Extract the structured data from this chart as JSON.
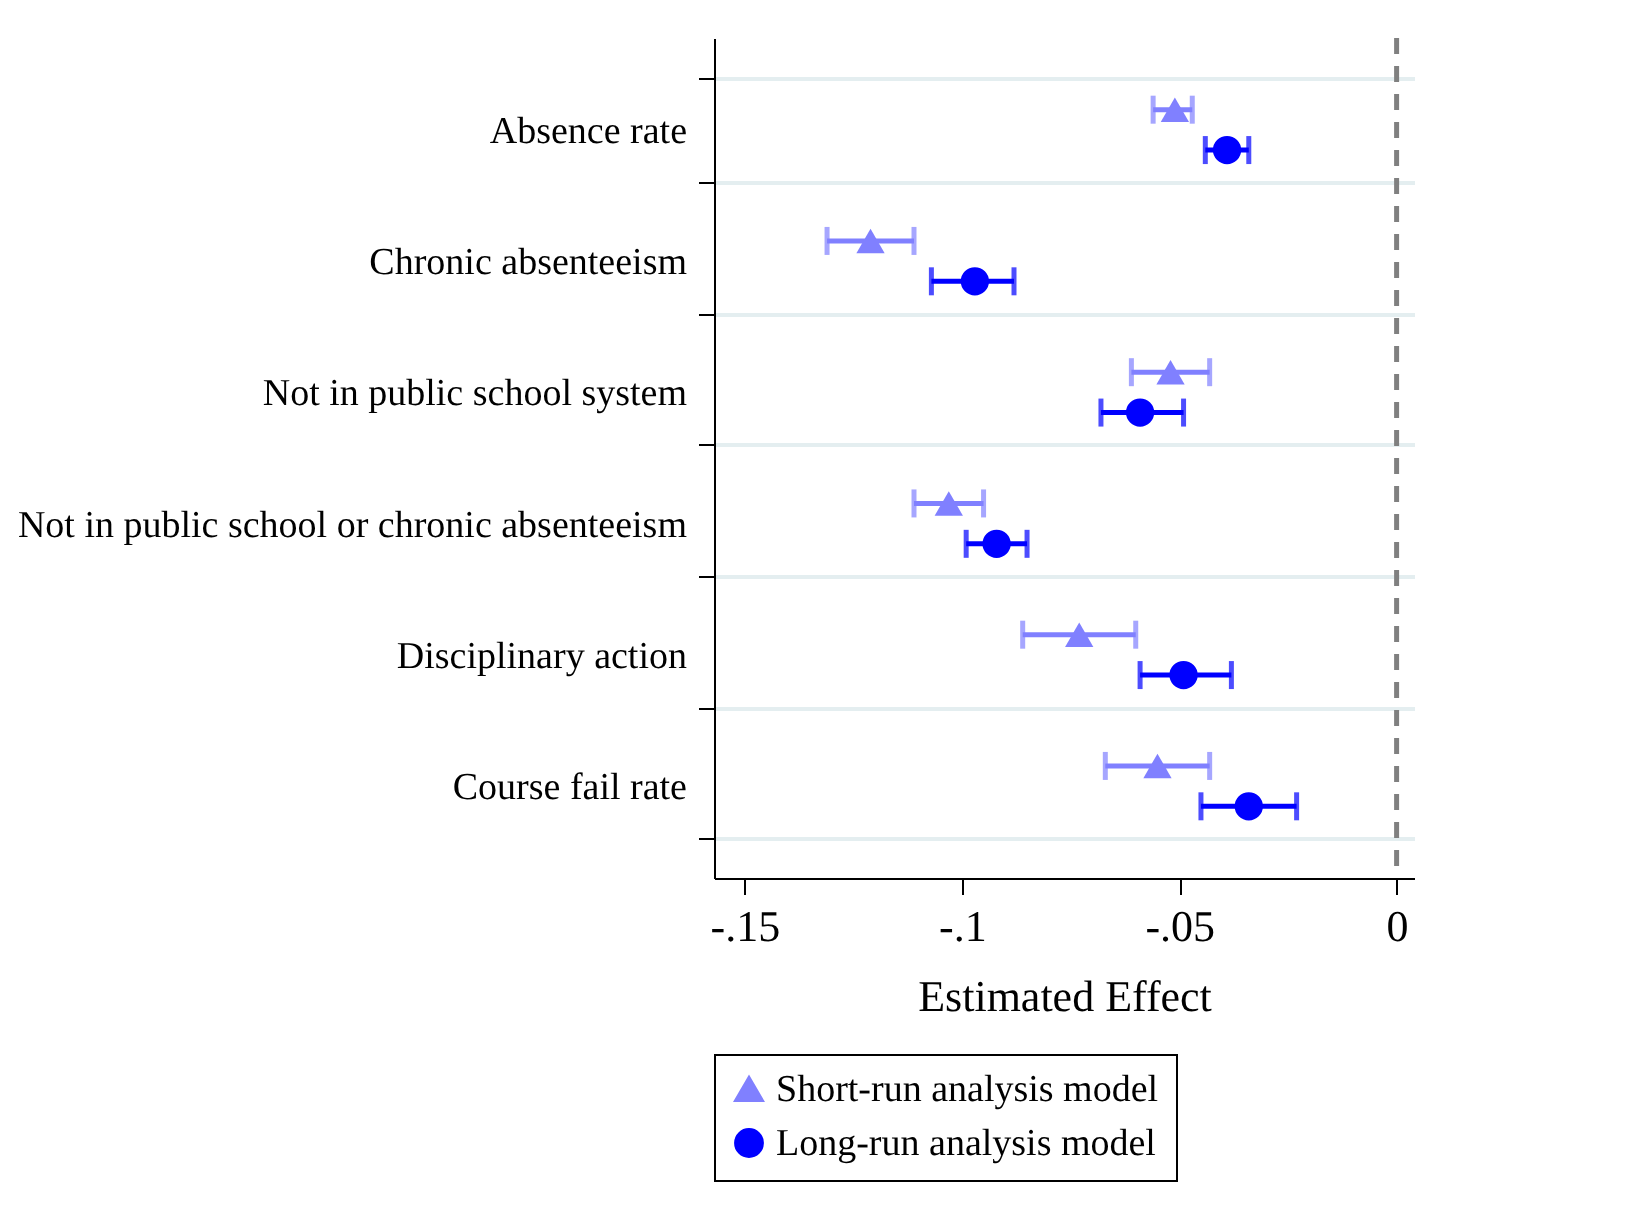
{
  "chart_data": {
    "type": "scatter",
    "xlabel": "Estimated Effect",
    "categories": [
      "Absence rate",
      "Chronic absenteeism",
      "Not in public school system",
      "Not in public school or chronic absenteeism",
      "Disciplinary action",
      "Course fail rate"
    ],
    "series": [
      {
        "name": "Short-run analysis model",
        "color": "#8080ff",
        "marker": "triangle",
        "values": [
          -0.051,
          -0.121,
          -0.052,
          -0.103,
          -0.073,
          -0.055
        ],
        "errors": [
          [
            -0.056,
            -0.047
          ],
          [
            -0.131,
            -0.111
          ],
          [
            -0.061,
            -0.043
          ],
          [
            -0.111,
            -0.095
          ],
          [
            -0.086,
            -0.06
          ],
          [
            -0.067,
            -0.043
          ]
        ]
      },
      {
        "name": "Long-run analysis model",
        "color": "#0000ff",
        "marker": "circle",
        "values": [
          -0.039,
          -0.097,
          -0.059,
          -0.092,
          -0.049,
          -0.034
        ],
        "errors": [
          [
            -0.044,
            -0.034
          ],
          [
            -0.107,
            -0.088
          ],
          [
            -0.068,
            -0.049
          ],
          [
            -0.099,
            -0.085
          ],
          [
            -0.059,
            -0.038
          ],
          [
            -0.045,
            -0.023
          ]
        ]
      }
    ],
    "xlim": [
      -0.157,
      0.004
    ],
    "xticks": [
      {
        "value": -0.15,
        "label": "-.15"
      },
      {
        "value": -0.1,
        "label": "-.1"
      },
      {
        "value": -0.05,
        "label": "-.05"
      },
      {
        "value": 0,
        "label": "0"
      }
    ],
    "ref_lines": [
      {
        "axis": "x",
        "value": 0,
        "color": "#808080",
        "line_style": "dashed"
      }
    ],
    "orientation": "horizontal",
    "grid": "y",
    "legend": "bottom"
  }
}
